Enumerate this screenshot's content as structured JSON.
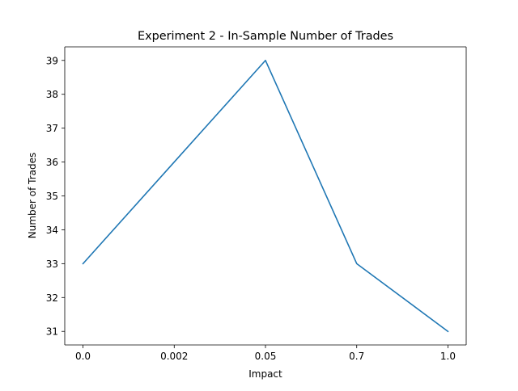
{
  "chart_data": {
    "type": "line",
    "title": "Experiment 2 - In-Sample Number of Trades",
    "xlabel": "Impact",
    "ylabel": "Number of Trades",
    "categories": [
      "0.0",
      "0.002",
      "0.05",
      "0.7",
      "1.0"
    ],
    "series": [
      {
        "values": [
          33,
          36,
          39,
          33,
          31
        ],
        "color": "#1f77b4"
      }
    ],
    "ylim": [
      30.6,
      39.4
    ],
    "yticks": [
      31,
      32,
      33,
      34,
      35,
      36,
      37,
      38,
      39
    ],
    "grid": false,
    "legend": "none"
  }
}
